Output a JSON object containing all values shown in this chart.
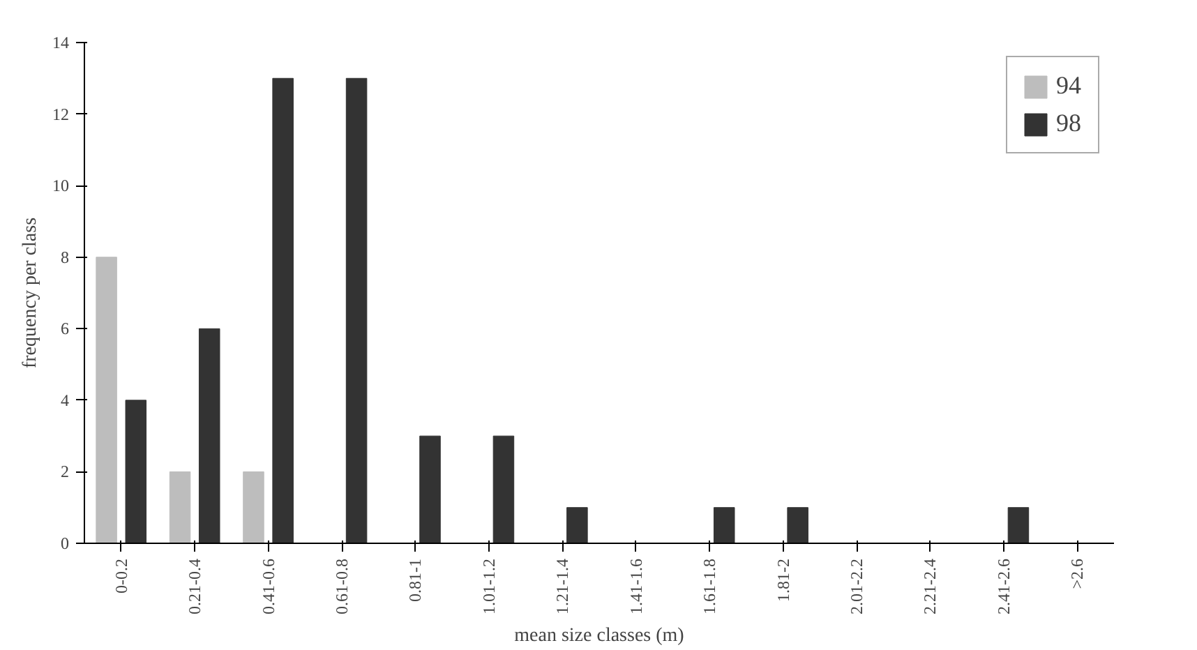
{
  "chart_data": {
    "type": "bar",
    "xlabel": "mean size classes (m)",
    "ylabel": "frequency per class",
    "categories": [
      "0-0.2",
      "0.21-0.4",
      "0.41-0.6",
      "0.61-0.8",
      "0.81-1",
      "1.01-1.2",
      "1.21-1.4",
      "1.41-1.6",
      "1.61-1.8",
      "1.81-2",
      "2.01-2.2",
      "2.21-2.4",
      "2.41-2.6",
      ">2.6"
    ],
    "series": [
      {
        "name": "94",
        "color": "#bdbdbd",
        "values": [
          8,
          2,
          2,
          null,
          null,
          null,
          null,
          null,
          null,
          null,
          null,
          null,
          null,
          null
        ]
      },
      {
        "name": "98",
        "color": "#333333",
        "values": [
          4,
          6,
          13,
          13,
          3,
          3,
          1,
          null,
          1,
          1,
          null,
          null,
          1,
          null
        ]
      }
    ],
    "ylim": [
      0,
      14
    ],
    "yticks": [
      0,
      2,
      4,
      6,
      8,
      10,
      12,
      14
    ],
    "grid": false,
    "legend": "top right"
  }
}
